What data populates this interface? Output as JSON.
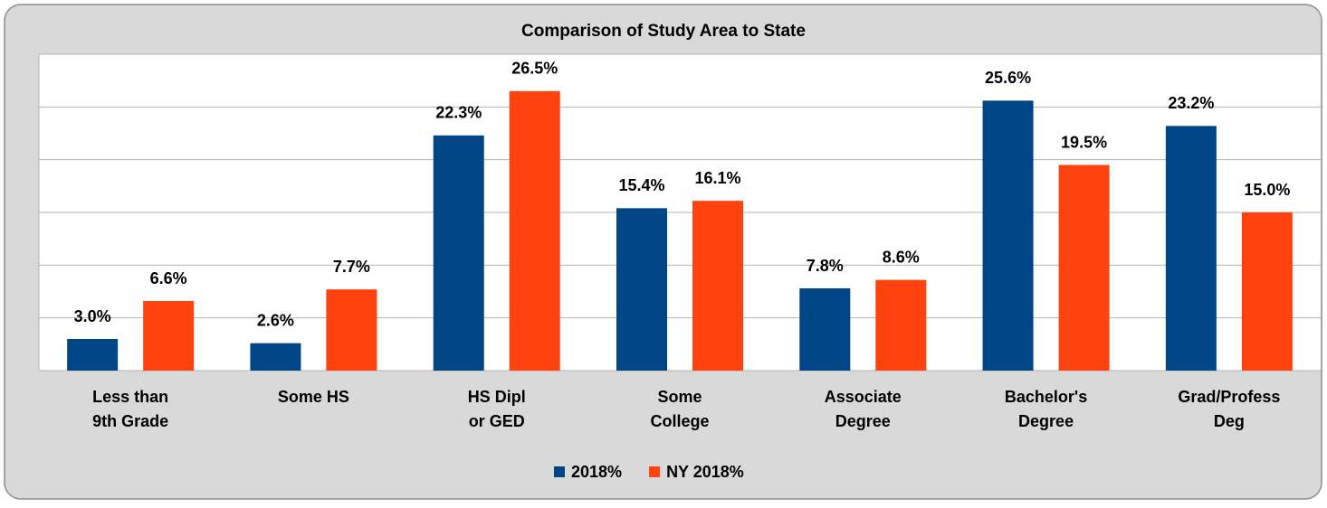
{
  "chart_data": {
    "type": "bar",
    "title": "Comparison of Study Area to State",
    "categories": [
      "Less than\n9th Grade",
      "Some HS",
      "HS Dipl\nor GED",
      "Some\nCollege",
      "Associate\nDegree",
      "Bachelor's\nDegree",
      "Grad/Profess\nDeg"
    ],
    "series": [
      {
        "name": "2018%",
        "color": "#004586",
        "values": [
          3.0,
          2.6,
          22.3,
          15.4,
          7.8,
          25.6,
          23.2
        ],
        "value_labels": [
          "3.0%",
          "2.6%",
          "22.3%",
          "15.4%",
          "7.8%",
          "25.6%",
          "23.2%"
        ]
      },
      {
        "name": "NY 2018%",
        "color": "#ff420e",
        "values": [
          6.6,
          7.7,
          26.5,
          16.1,
          8.6,
          19.5,
          15.0
        ],
        "value_labels": [
          "6.6%",
          "7.7%",
          "26.5%",
          "16.1%",
          "8.6%",
          "19.5%",
          "15.0%"
        ]
      }
    ],
    "ylim": [
      0,
      30
    ],
    "yticks": [
      0,
      5,
      10,
      15,
      20,
      25,
      30
    ],
    "grid": true,
    "legend": "bottom"
  }
}
